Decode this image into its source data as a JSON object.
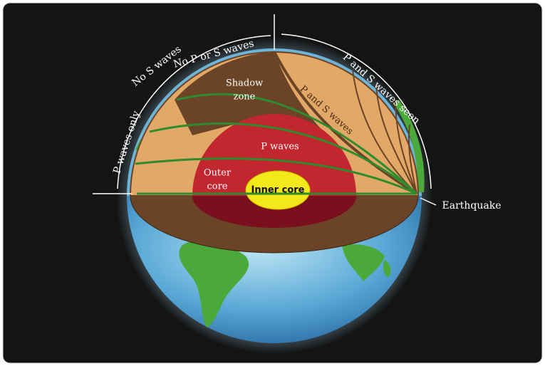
{
  "labels": {
    "no_s_waves": "No S waves",
    "no_p_or_s_waves": "No P or S waves",
    "p_and_s_seen": "P and S waves seen",
    "p_waves_only": "P waves only",
    "shadow_zone": [
      "Shadow",
      "zone"
    ],
    "p_and_s_waves": "P and S waves",
    "p_waves": "P waves",
    "outer_core": [
      "Outer",
      "core"
    ],
    "inner_core": "Inner core",
    "earthquake": "Earthquake"
  }
}
